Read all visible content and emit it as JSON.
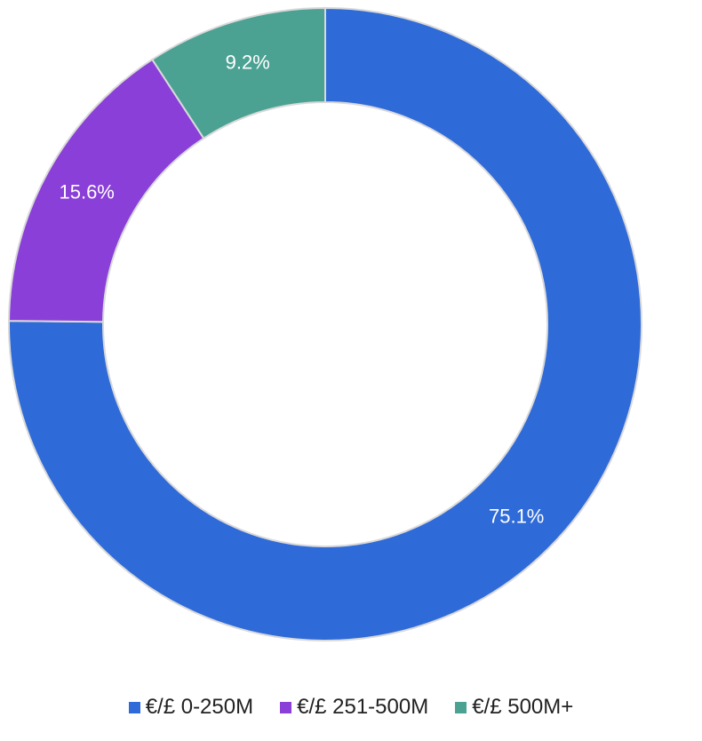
{
  "chart_data": {
    "type": "pie",
    "donut": true,
    "categories": [
      "€/£ 0-250M",
      "€/£ 251-500M",
      "€/£ 500M+"
    ],
    "values": [
      75.1,
      15.6,
      9.2
    ],
    "data_labels": [
      "75.1%",
      "15.6%",
      "9.2%"
    ],
    "colors": [
      "#2f6bd8",
      "#8a3fd8",
      "#4ba293"
    ],
    "start_angle": "top, clockwise",
    "legend_position": "bottom-center",
    "title": ""
  },
  "legend": {
    "items": [
      {
        "label": "€/£ 0-250M",
        "color": "#2f6bd8"
      },
      {
        "label": "€/£ 251-500M",
        "color": "#8a3fd8"
      },
      {
        "label": "€/£ 500M+",
        "color": "#4ba293"
      }
    ]
  }
}
